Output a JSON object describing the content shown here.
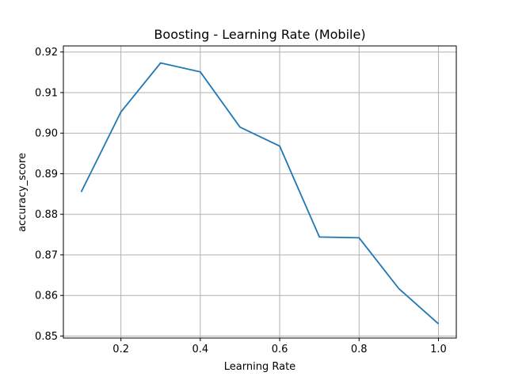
{
  "chart_data": {
    "type": "line",
    "title": "Boosting - Learning Rate (Mobile)",
    "xlabel": "Learning Rate",
    "ylabel": "accuracy_score",
    "xlim": [
      0.055,
      1.045
    ],
    "ylim": [
      0.8495,
      0.9215
    ],
    "xticks": [
      0.2,
      0.4,
      0.6,
      0.8,
      1.0
    ],
    "xtick_labels": [
      "0.2",
      "0.4",
      "0.6",
      "0.8",
      "1.0"
    ],
    "yticks": [
      0.85,
      0.86,
      0.87,
      0.88,
      0.89,
      0.9,
      0.91,
      0.92
    ],
    "ytick_labels": [
      "0.85",
      "0.86",
      "0.87",
      "0.88",
      "0.89",
      "0.90",
      "0.91",
      "0.92"
    ],
    "grid": true,
    "line_color": "#1f77b4",
    "series": [
      {
        "x": [
          0.1,
          0.2,
          0.3,
          0.4,
          0.5,
          0.6,
          0.7,
          0.8,
          0.9,
          1.0
        ],
        "y": [
          0.8855,
          0.9052,
          0.9173,
          0.9151,
          0.9015,
          0.8968,
          0.8744,
          0.8742,
          0.8617,
          0.853
        ]
      }
    ]
  }
}
